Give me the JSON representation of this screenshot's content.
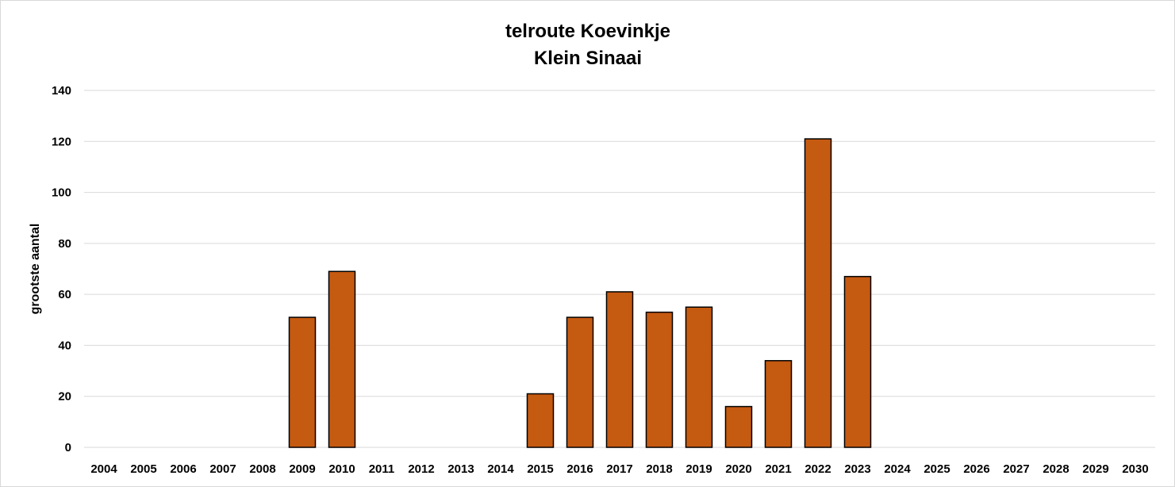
{
  "chart_data": {
    "type": "bar",
    "title": "telroute Koevinkje",
    "subtitle": "Klein Sinaai",
    "ylabel": "grootste aantal",
    "xlabel": "",
    "ylim": [
      0,
      140
    ],
    "yticks": [
      0,
      20,
      40,
      60,
      80,
      100,
      120,
      140
    ],
    "grid": true,
    "bar_color": "#c55a11",
    "categories": [
      "2004",
      "2005",
      "2006",
      "2007",
      "2008",
      "2009",
      "2010",
      "2011",
      "2012",
      "2013",
      "2014",
      "2015",
      "2016",
      "2017",
      "2018",
      "2019",
      "2020",
      "2021",
      "2022",
      "2023",
      "2024",
      "2025",
      "2026",
      "2027",
      "2028",
      "2029",
      "2030"
    ],
    "values": [
      null,
      null,
      null,
      null,
      null,
      51,
      69,
      null,
      null,
      null,
      null,
      21,
      51,
      61,
      53,
      55,
      16,
      34,
      121,
      67,
      null,
      null,
      null,
      null,
      null,
      null,
      null
    ]
  }
}
